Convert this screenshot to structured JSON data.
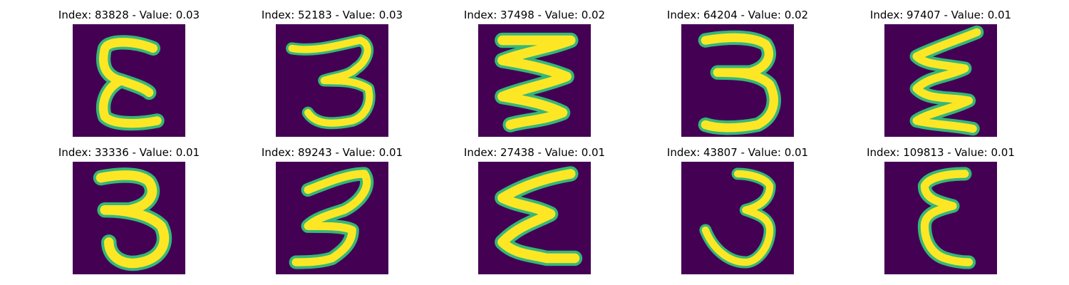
{
  "colors": {
    "background": "#440154",
    "stroke_outer": "#35b779",
    "stroke_inner": "#fde725"
  },
  "tiles": [
    {
      "title": "Index: 83828 - Value: 0.03",
      "glyph": "epsilon"
    },
    {
      "title": "Index: 52183 - Value: 0.03",
      "glyph": "three"
    },
    {
      "title": "Index: 37498 - Value: 0.02",
      "glyph": "zigzag"
    },
    {
      "title": "Index: 64204 - Value: 0.02",
      "glyph": "three-wide"
    },
    {
      "title": "Index: 97407 - Value: 0.01",
      "glyph": "wave"
    },
    {
      "title": "Index: 33336 - Value: 0.01",
      "glyph": "three-round"
    },
    {
      "title": "Index: 89243 - Value: 0.01",
      "glyph": "three-slant"
    },
    {
      "title": "Index: 27438 - Value: 0.01",
      "glyph": "epsilon-wide"
    },
    {
      "title": "Index: 43807 - Value: 0.01",
      "glyph": "three-thin"
    },
    {
      "title": "Index: 109813 - Value: 0.01",
      "glyph": "epsilon-narrow"
    }
  ]
}
